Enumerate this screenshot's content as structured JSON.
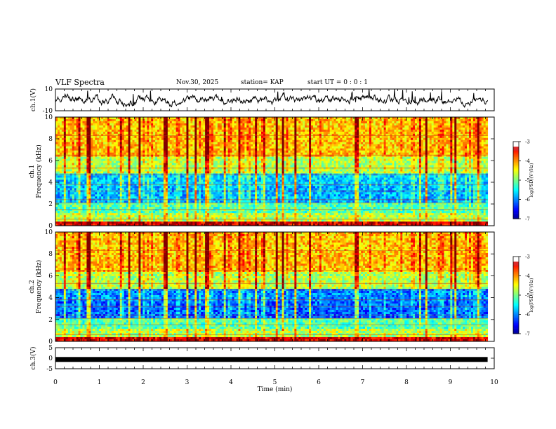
{
  "header": {
    "title": "VLF Spectra",
    "date": "Nov.30, 2025",
    "station": "station= KAP",
    "start": "start  UT =  0 : 0  : 1"
  },
  "chart_data": [
    {
      "type": "line",
      "name": "ch1-waveform",
      "ylabel": "ch.1(V)",
      "ylim": [
        -10,
        10
      ],
      "yticks": [
        "10",
        "-10"
      ],
      "color": "#000000"
    },
    {
      "type": "heatmap",
      "name": "ch1-spectrogram",
      "ylabel_top": "ch.1",
      "ylabel": "Frequency (kHz)",
      "ylim": [
        0,
        10
      ],
      "yticks": [
        "0",
        "2",
        "4",
        "6",
        "8",
        "10"
      ],
      "colorbar": {
        "label": "log(PSD)(V²/Hz)",
        "range": [
          -7,
          -3
        ],
        "ticks": [
          "-3",
          "-4",
          "-5",
          "-6",
          "-7"
        ]
      }
    },
    {
      "type": "heatmap",
      "name": "ch2-spectrogram",
      "ylabel_top": "ch.2",
      "ylabel": "Frequency (kHz)",
      "ylim": [
        0,
        10
      ],
      "yticks": [
        "0",
        "2",
        "4",
        "6",
        "8",
        "10"
      ],
      "colorbar": {
        "label": "log(PSD)(V²/Hz)",
        "range": [
          -7,
          -3
        ],
        "ticks": [
          "-3",
          "-4",
          "-5",
          "-6",
          "-7"
        ]
      }
    },
    {
      "type": "line",
      "name": "ch3-signal",
      "ylabel": "ch.3(V)",
      "ylim": [
        -5,
        5
      ],
      "yticks": [
        "5",
        "0",
        "-5"
      ],
      "value": -0.6
    }
  ],
  "xaxis": {
    "label": "Time (min)",
    "range": [
      0,
      10
    ],
    "ticks": [
      "0",
      "1",
      "2",
      "3",
      "4",
      "5",
      "6",
      "7",
      "8",
      "9",
      "10"
    ],
    "data_end": 9.85
  }
}
